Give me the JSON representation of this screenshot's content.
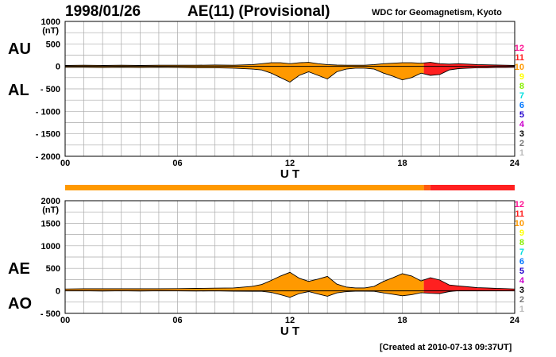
{
  "header": {
    "date": "1998/01/26",
    "title": "AE(11) (Provisional)",
    "credit": "WDC for Geomagnetism, Kyoto"
  },
  "footer": {
    "created": "[Created at 2010-07-13 09:37UT]"
  },
  "colors": {
    "main": "#ff9900",
    "late": "#ff2020",
    "edge": "#000000",
    "grid": "#aaaaaa"
  },
  "chart_data": [
    {
      "type": "area",
      "panel": "AU/AL",
      "label_top": "AU",
      "label_bottom": "AL",
      "unit": "(nT)",
      "xlabel": "U T",
      "xlim": [
        0,
        24
      ],
      "x_ticks": [
        "00",
        "06",
        "12",
        "18",
        "24"
      ],
      "ylim": [
        -2000,
        1000
      ],
      "y_ticks": [
        "1000",
        "500",
        "0",
        "- 500",
        "- 1000",
        "- 1500",
        "- 2000"
      ],
      "grid": true,
      "hour": [
        0,
        1,
        2,
        3,
        4,
        5,
        6,
        7,
        8,
        9,
        10,
        10.5,
        11,
        11.5,
        12,
        12.5,
        13,
        13.5,
        14,
        14.5,
        15,
        15.5,
        16,
        16.5,
        17,
        17.5,
        18,
        18.5,
        19,
        19.5,
        20,
        20.5,
        21,
        21.5,
        22,
        22.5,
        23,
        23.5,
        24
      ],
      "series": [
        {
          "name": "AU",
          "values": [
            20,
            25,
            20,
            25,
            20,
            25,
            25,
            25,
            30,
            25,
            40,
            60,
            80,
            80,
            60,
            80,
            90,
            60,
            40,
            30,
            25,
            25,
            25,
            40,
            60,
            70,
            80,
            80,
            70,
            90,
            60,
            50,
            60,
            50,
            40,
            35,
            30,
            25,
            20
          ]
        },
        {
          "name": "AL",
          "values": [
            -20,
            -20,
            -25,
            -20,
            -25,
            -20,
            -25,
            -30,
            -30,
            -40,
            -60,
            -80,
            -150,
            -250,
            -350,
            -200,
            -120,
            -200,
            -280,
            -120,
            -60,
            -40,
            -40,
            -60,
            -150,
            -220,
            -300,
            -250,
            -150,
            -200,
            -180,
            -80,
            -50,
            -40,
            -30,
            -30,
            -25,
            -25,
            -20
          ]
        }
      ]
    },
    {
      "type": "area",
      "panel": "AE/AO",
      "label_top": "AE",
      "label_bottom": "AO",
      "unit": "(nT)",
      "xlabel": "U T",
      "xlim": [
        0,
        24
      ],
      "x_ticks": [
        "00",
        "06",
        "12",
        "18",
        "24"
      ],
      "ylim": [
        -500,
        2000
      ],
      "y_ticks": [
        "2000",
        "1500",
        "1000",
        "500",
        "0",
        "- 500"
      ],
      "grid": true,
      "hour": [
        0,
        1,
        2,
        3,
        4,
        5,
        6,
        7,
        8,
        9,
        10,
        10.5,
        11,
        11.5,
        12,
        12.5,
        13,
        13.5,
        14,
        14.5,
        15,
        15.5,
        16,
        16.5,
        17,
        17.5,
        18,
        18.5,
        19,
        19.5,
        20,
        20.5,
        21,
        21.5,
        22,
        22.5,
        23,
        23.5,
        24
      ],
      "series": [
        {
          "name": "AE",
          "values": [
            40,
            45,
            45,
            45,
            45,
            45,
            50,
            55,
            60,
            65,
            100,
            140,
            230,
            330,
            410,
            280,
            210,
            260,
            320,
            150,
            85,
            65,
            65,
            100,
            210,
            290,
            380,
            330,
            220,
            290,
            240,
            130,
            110,
            90,
            70,
            65,
            55,
            50,
            40
          ]
        },
        {
          "name": "AO",
          "values": [
            0,
            3,
            -3,
            3,
            -3,
            3,
            0,
            -3,
            0,
            -8,
            -10,
            -10,
            -35,
            -85,
            -145,
            -60,
            -15,
            -70,
            -120,
            -45,
            -18,
            -8,
            -8,
            -10,
            -45,
            -75,
            -110,
            -85,
            -40,
            -55,
            -60,
            -15,
            5,
            5,
            5,
            3,
            3,
            0,
            0
          ]
        }
      ]
    }
  ],
  "status_bar": {
    "segments": [
      {
        "from": 0,
        "to": 19.15,
        "color": "#ff9900"
      },
      {
        "from": 19.15,
        "to": 19.5,
        "color": "#ff5a10"
      },
      {
        "from": 19.5,
        "to": 24,
        "color": "#ff2020"
      }
    ]
  },
  "level_legend": [
    {
      "label": "12",
      "color": "#ff1493"
    },
    {
      "label": "11",
      "color": "#ff2020"
    },
    {
      "label": "10",
      "color": "#ff9900"
    },
    {
      "label": "9",
      "color": "#ffff00"
    },
    {
      "label": "8",
      "color": "#88ee00"
    },
    {
      "label": "7",
      "color": "#00dddd"
    },
    {
      "label": "6",
      "color": "#0077ff"
    },
    {
      "label": "5",
      "color": "#2200cc"
    },
    {
      "label": "4",
      "color": "#cc00cc"
    },
    {
      "label": "3",
      "color": "#000000"
    },
    {
      "label": "2",
      "color": "#777777"
    },
    {
      "label": "1",
      "color": "#bbbbbb"
    }
  ]
}
